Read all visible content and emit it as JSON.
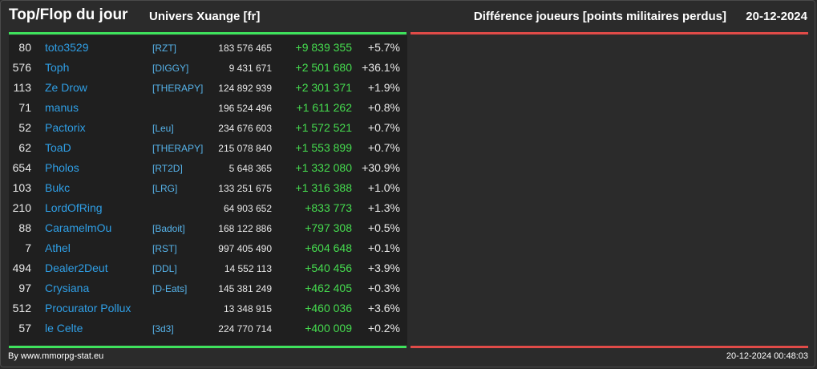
{
  "header": {
    "title": "Top/Flop du jour",
    "universe": "Univers Xuange [fr]",
    "metric": "Différence joueurs [points militaires perdus]",
    "date": "20-12-2024"
  },
  "colors": {
    "top_accent": "#3ee25c",
    "flop_accent": "#e04b48",
    "player_link": "#2f9fe6",
    "alliance_link": "#56b3ea",
    "positive_diff": "#46dd4f"
  },
  "rows": [
    {
      "rank": "80",
      "name": "toto3529",
      "alliance": "[RZT]",
      "points": "183 576 465",
      "diff": "+9 839 355",
      "pct": "+5.7%"
    },
    {
      "rank": "576",
      "name": "Toph",
      "alliance": "[DIGGY]",
      "points": "9 431 671",
      "diff": "+2 501 680",
      "pct": "+36.1%"
    },
    {
      "rank": "113",
      "name": "Ze Drow",
      "alliance": "[THERAPY]",
      "points": "124 892 939",
      "diff": "+2 301 371",
      "pct": "+1.9%"
    },
    {
      "rank": "71",
      "name": "manus",
      "alliance": "",
      "points": "196 524 496",
      "diff": "+1 611 262",
      "pct": "+0.8%"
    },
    {
      "rank": "52",
      "name": "Pactorix",
      "alliance": "[Leu]",
      "points": "234 676 603",
      "diff": "+1 572 521",
      "pct": "+0.7%"
    },
    {
      "rank": "62",
      "name": "ToaD",
      "alliance": "[THERAPY]",
      "points": "215 078 840",
      "diff": "+1 553 899",
      "pct": "+0.7%"
    },
    {
      "rank": "654",
      "name": "Pholos",
      "alliance": "[RT2D]",
      "points": "5 648 365",
      "diff": "+1 332 080",
      "pct": "+30.9%"
    },
    {
      "rank": "103",
      "name": "Bukc",
      "alliance": "[LRG]",
      "points": "133 251 675",
      "diff": "+1 316 388",
      "pct": "+1.0%"
    },
    {
      "rank": "210",
      "name": "LordOfRing",
      "alliance": "",
      "points": "64 903 652",
      "diff": "+833 773",
      "pct": "+1.3%"
    },
    {
      "rank": "88",
      "name": "CaramelmOu",
      "alliance": "[Badoit]",
      "points": "168 122 886",
      "diff": "+797 308",
      "pct": "+0.5%"
    },
    {
      "rank": "7",
      "name": "Athel",
      "alliance": "[RST]",
      "points": "997 405 490",
      "diff": "+604 648",
      "pct": "+0.1%"
    },
    {
      "rank": "494",
      "name": "Dealer2Deut",
      "alliance": "[DDL]",
      "points": "14 552 113",
      "diff": "+540 456",
      "pct": "+3.9%"
    },
    {
      "rank": "97",
      "name": "Crysiana",
      "alliance": "[D-Eats]",
      "points": "145 381 249",
      "diff": "+462 405",
      "pct": "+0.3%"
    },
    {
      "rank": "512",
      "name": "Procurator Pollux",
      "alliance": "",
      "points": "13 348 915",
      "diff": "+460 036",
      "pct": "+3.6%"
    },
    {
      "rank": "57",
      "name": "le Celte",
      "alliance": "[3d3]",
      "points": "224 770 714",
      "diff": "+400 009",
      "pct": "+0.2%"
    }
  ],
  "footer": {
    "credit": "By www.mmorpg-stat.eu",
    "generated": "20-12-2024 00:48:03"
  }
}
